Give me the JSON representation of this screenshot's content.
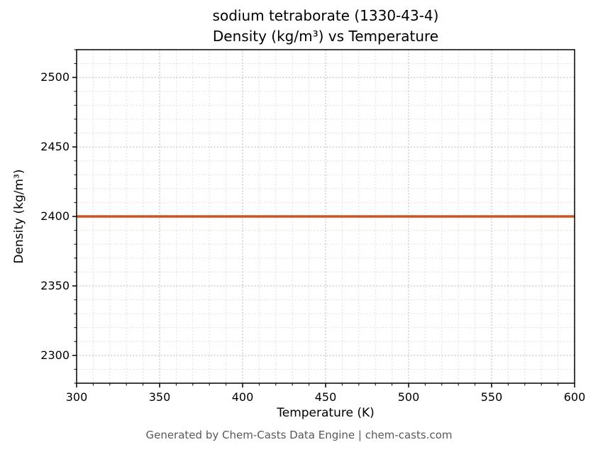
{
  "figure": {
    "title_line1": "sodium tetraborate (1330-43-4)",
    "title_line2": "Density (kg/m³) vs Temperature",
    "footer": "Generated by Chem-Casts Data Engine | chem-casts.com"
  },
  "chart_data": {
    "type": "line",
    "title": "sodium tetraborate (1330-43-4) — Density (kg/m³) vs Temperature",
    "xlabel": "Temperature (K)",
    "ylabel": "Density (kg/m³)",
    "xlim": [
      300,
      600
    ],
    "ylim": [
      2280,
      2520
    ],
    "xticks": [
      300,
      350,
      400,
      450,
      500,
      550,
      600
    ],
    "yticks": [
      2300,
      2350,
      2400,
      2450,
      2500
    ],
    "minor_step_x": 10,
    "minor_step_y": 10,
    "grid": true,
    "grid_style": "dotted",
    "legend": "none",
    "series": [
      {
        "name": "density",
        "x": [
          300,
          600
        ],
        "y": [
          2400,
          2400
        ],
        "color": "#d2521e",
        "linewidth": 3.5
      }
    ]
  },
  "colors": {
    "grid_major": "#b0b0b0",
    "grid_minor": "#dcdcdc",
    "axis": "#000000",
    "footer_text": "#595959",
    "background": "#ffffff"
  }
}
